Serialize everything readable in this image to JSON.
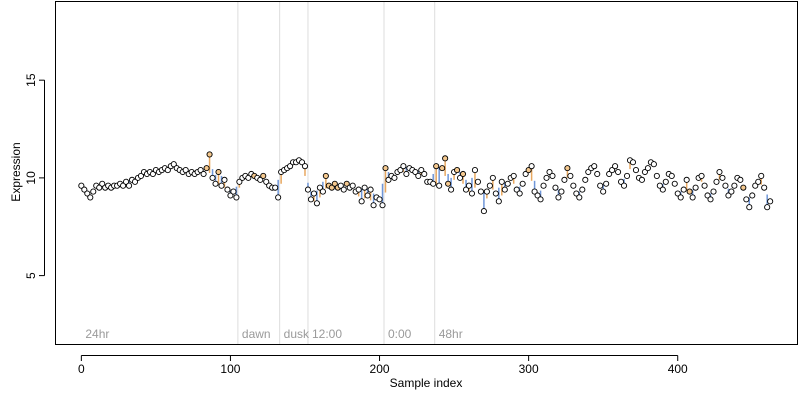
{
  "chart_data": {
    "type": "scatter",
    "title": "",
    "xlabel": "Sample index",
    "ylabel": "Expression",
    "xlim": [
      -17,
      480
    ],
    "ylim": [
      1.5,
      19
    ],
    "x_ticks": [
      0,
      100,
      200,
      300,
      400
    ],
    "y_ticks": [
      5,
      10,
      15
    ],
    "grid": false,
    "colors": {
      "point_fill_default": "#ffffff",
      "point_fill_highlight": "#f5c98f",
      "point_edge": "#000000",
      "deviation_up": "#e8a860",
      "deviation_down": "#6f96d8",
      "separator": "#dddddd",
      "segment_label": "#9a9a9a"
    },
    "segments": [
      {
        "label": "24hr",
        "start": 0
      },
      {
        "label": "dawn",
        "start": 105
      },
      {
        "label": "dusk",
        "start": 133
      },
      {
        "label": "12:00",
        "start": 152
      },
      {
        "label": "0:00",
        "start": 203
      },
      {
        "label": "48hr",
        "start": 237
      }
    ],
    "series": [
      {
        "values": [
          {
            "x": 0,
            "y": 9.6
          },
          {
            "x": 2,
            "y": 9.4
          },
          {
            "x": 4,
            "y": 9.2
          },
          {
            "x": 6,
            "y": 9.0
          },
          {
            "x": 8,
            "y": 9.3
          },
          {
            "x": 10,
            "y": 9.6
          },
          {
            "x": 12,
            "y": 9.5
          },
          {
            "x": 14,
            "y": 9.7
          },
          {
            "x": 16,
            "y": 9.5
          },
          {
            "x": 18,
            "y": 9.6
          },
          {
            "x": 20,
            "y": 9.5
          },
          {
            "x": 22,
            "y": 9.6
          },
          {
            "x": 24,
            "y": 9.6
          },
          {
            "x": 26,
            "y": 9.7
          },
          {
            "x": 28,
            "y": 9.6
          },
          {
            "x": 30,
            "y": 9.8
          },
          {
            "x": 32,
            "y": 9.6
          },
          {
            "x": 34,
            "y": 9.9
          },
          {
            "x": 36,
            "y": 9.8
          },
          {
            "x": 38,
            "y": 10.0
          },
          {
            "x": 40,
            "y": 10.1
          },
          {
            "x": 42,
            "y": 10.3
          },
          {
            "x": 44,
            "y": 10.2
          },
          {
            "x": 46,
            "y": 10.3
          },
          {
            "x": 48,
            "y": 10.2
          },
          {
            "x": 50,
            "y": 10.4
          },
          {
            "x": 52,
            "y": 10.3
          },
          {
            "x": 54,
            "y": 10.4
          },
          {
            "x": 56,
            "y": 10.5
          },
          {
            "x": 58,
            "y": 10.4
          },
          {
            "x": 60,
            "y": 10.6
          },
          {
            "x": 62,
            "y": 10.7
          },
          {
            "x": 64,
            "y": 10.5
          },
          {
            "x": 66,
            "y": 10.4
          },
          {
            "x": 68,
            "y": 10.3
          },
          {
            "x": 70,
            "y": 10.4
          },
          {
            "x": 72,
            "y": 10.2
          },
          {
            "x": 74,
            "y": 10.3
          },
          {
            "x": 76,
            "y": 10.2
          },
          {
            "x": 78,
            "y": 10.3
          },
          {
            "x": 80,
            "y": 10.4
          },
          {
            "x": 82,
            "y": 10.2
          },
          {
            "x": 84,
            "y": 10.5,
            "hl": true
          },
          {
            "x": 86,
            "y": 11.2,
            "hl": true
          },
          {
            "x": 88,
            "y": 10.0
          },
          {
            "x": 90,
            "y": 9.7
          },
          {
            "x": 92,
            "y": 10.3,
            "hl": true
          },
          {
            "x": 94,
            "y": 9.6
          },
          {
            "x": 96,
            "y": 9.9
          },
          {
            "x": 98,
            "y": 9.4
          },
          {
            "x": 100,
            "y": 9.1
          },
          {
            "x": 102,
            "y": 9.3
          },
          {
            "x": 104,
            "y": 9.0
          },
          {
            "x": 106,
            "y": 9.8
          },
          {
            "x": 108,
            "y": 10.0
          },
          {
            "x": 110,
            "y": 10.1
          },
          {
            "x": 112,
            "y": 10.0
          },
          {
            "x": 114,
            "y": 10.2
          },
          {
            "x": 116,
            "y": 10.1,
            "hl": true
          },
          {
            "x": 118,
            "y": 10.0
          },
          {
            "x": 120,
            "y": 9.9
          },
          {
            "x": 122,
            "y": 10.1,
            "hl": true
          },
          {
            "x": 124,
            "y": 9.8
          },
          {
            "x": 126,
            "y": 9.6
          },
          {
            "x": 128,
            "y": 9.5
          },
          {
            "x": 130,
            "y": 9.5
          },
          {
            "x": 132,
            "y": 9.0
          },
          {
            "x": 134,
            "y": 10.3
          },
          {
            "x": 136,
            "y": 10.4
          },
          {
            "x": 138,
            "y": 10.5
          },
          {
            "x": 140,
            "y": 10.6
          },
          {
            "x": 142,
            "y": 10.8
          },
          {
            "x": 144,
            "y": 10.8
          },
          {
            "x": 146,
            "y": 10.9
          },
          {
            "x": 148,
            "y": 10.8
          },
          {
            "x": 150,
            "y": 10.6
          },
          {
            "x": 152,
            "y": 9.4
          },
          {
            "x": 154,
            "y": 8.9
          },
          {
            "x": 156,
            "y": 9.2
          },
          {
            "x": 158,
            "y": 8.7
          },
          {
            "x": 160,
            "y": 9.5
          },
          {
            "x": 162,
            "y": 9.3
          },
          {
            "x": 164,
            "y": 10.1,
            "hl": true
          },
          {
            "x": 166,
            "y": 9.6,
            "hl": true
          },
          {
            "x": 168,
            "y": 9.5,
            "hl": true
          },
          {
            "x": 170,
            "y": 9.7,
            "hl": true
          },
          {
            "x": 172,
            "y": 9.5,
            "hl": true
          },
          {
            "x": 174,
            "y": 9.6
          },
          {
            "x": 176,
            "y": 9.4
          },
          {
            "x": 178,
            "y": 9.7,
            "hl": true
          },
          {
            "x": 180,
            "y": 9.5
          },
          {
            "x": 182,
            "y": 9.6
          },
          {
            "x": 184,
            "y": 9.3
          },
          {
            "x": 186,
            "y": 9.4
          },
          {
            "x": 188,
            "y": 8.8
          },
          {
            "x": 190,
            "y": 9.5
          },
          {
            "x": 192,
            "y": 9.1
          },
          {
            "x": 194,
            "y": 9.4
          },
          {
            "x": 196,
            "y": 8.6
          },
          {
            "x": 198,
            "y": 9.0
          },
          {
            "x": 200,
            "y": 8.9
          },
          {
            "x": 202,
            "y": 8.6
          },
          {
            "x": 204,
            "y": 10.5,
            "hl": true
          },
          {
            "x": 206,
            "y": 9.9
          },
          {
            "x": 208,
            "y": 10.1
          },
          {
            "x": 210,
            "y": 10.0
          },
          {
            "x": 212,
            "y": 10.3
          },
          {
            "x": 214,
            "y": 10.4
          },
          {
            "x": 216,
            "y": 10.6
          },
          {
            "x": 218,
            "y": 10.2
          },
          {
            "x": 220,
            "y": 10.5
          },
          {
            "x": 222,
            "y": 10.4
          },
          {
            "x": 224,
            "y": 10.3
          },
          {
            "x": 226,
            "y": 10.1
          },
          {
            "x": 228,
            "y": 10.4
          },
          {
            "x": 230,
            "y": 10.2
          },
          {
            "x": 232,
            "y": 9.8
          },
          {
            "x": 234,
            "y": 9.8
          },
          {
            "x": 236,
            "y": 9.7
          },
          {
            "x": 238,
            "y": 10.6,
            "hl": true
          },
          {
            "x": 240,
            "y": 9.6
          },
          {
            "x": 242,
            "y": 10.5,
            "hl": true
          },
          {
            "x": 244,
            "y": 11.0,
            "hl": true
          },
          {
            "x": 246,
            "y": 9.7,
            "hl": true
          },
          {
            "x": 248,
            "y": 9.4
          },
          {
            "x": 250,
            "y": 10.3
          },
          {
            "x": 252,
            "y": 10.4,
            "hl": true
          },
          {
            "x": 254,
            "y": 10.0
          },
          {
            "x": 256,
            "y": 10.2,
            "hl": true
          },
          {
            "x": 258,
            "y": 9.4
          },
          {
            "x": 260,
            "y": 9.6
          },
          {
            "x": 262,
            "y": 9.2
          },
          {
            "x": 264,
            "y": 10.4
          },
          {
            "x": 266,
            "y": 9.8
          },
          {
            "x": 268,
            "y": 9.3
          },
          {
            "x": 270,
            "y": 8.3
          },
          {
            "x": 272,
            "y": 9.3
          },
          {
            "x": 274,
            "y": 9.6
          },
          {
            "x": 276,
            "y": 10.0
          },
          {
            "x": 278,
            "y": 9.2
          },
          {
            "x": 280,
            "y": 8.8
          },
          {
            "x": 282,
            "y": 9.8
          },
          {
            "x": 284,
            "y": 9.4
          },
          {
            "x": 286,
            "y": 9.7
          },
          {
            "x": 288,
            "y": 10.0
          },
          {
            "x": 290,
            "y": 10.1
          },
          {
            "x": 292,
            "y": 9.4
          },
          {
            "x": 294,
            "y": 9.2
          },
          {
            "x": 296,
            "y": 9.7
          },
          {
            "x": 298,
            "y": 10.2
          },
          {
            "x": 300,
            "y": 10.4,
            "hl": true
          },
          {
            "x": 302,
            "y": 10.6
          },
          {
            "x": 304,
            "y": 9.3
          },
          {
            "x": 306,
            "y": 9.1
          },
          {
            "x": 308,
            "y": 8.9
          },
          {
            "x": 310,
            "y": 9.6
          },
          {
            "x": 312,
            "y": 10.0
          },
          {
            "x": 314,
            "y": 10.3
          },
          {
            "x": 316,
            "y": 10.1
          },
          {
            "x": 318,
            "y": 9.5
          },
          {
            "x": 320,
            "y": 9.0
          },
          {
            "x": 322,
            "y": 9.3
          },
          {
            "x": 324,
            "y": 9.9
          },
          {
            "x": 326,
            "y": 10.5,
            "hl": true
          },
          {
            "x": 328,
            "y": 10.1
          },
          {
            "x": 330,
            "y": 9.6
          },
          {
            "x": 332,
            "y": 9.2
          },
          {
            "x": 334,
            "y": 9.0
          },
          {
            "x": 336,
            "y": 9.4
          },
          {
            "x": 338,
            "y": 9.9
          },
          {
            "x": 340,
            "y": 10.3
          },
          {
            "x": 342,
            "y": 10.5
          },
          {
            "x": 344,
            "y": 10.6
          },
          {
            "x": 346,
            "y": 10.2
          },
          {
            "x": 348,
            "y": 9.6
          },
          {
            "x": 350,
            "y": 9.3
          },
          {
            "x": 352,
            "y": 9.7
          },
          {
            "x": 354,
            "y": 10.2
          },
          {
            "x": 356,
            "y": 10.4
          },
          {
            "x": 358,
            "y": 10.6
          },
          {
            "x": 360,
            "y": 10.3
          },
          {
            "x": 362,
            "y": 9.8
          },
          {
            "x": 364,
            "y": 9.6
          },
          {
            "x": 366,
            "y": 10.1
          },
          {
            "x": 368,
            "y": 10.9
          },
          {
            "x": 370,
            "y": 10.8
          },
          {
            "x": 372,
            "y": 10.4
          },
          {
            "x": 374,
            "y": 10.0
          },
          {
            "x": 376,
            "y": 9.9
          },
          {
            "x": 378,
            "y": 10.3
          },
          {
            "x": 380,
            "y": 10.5
          },
          {
            "x": 382,
            "y": 10.8
          },
          {
            "x": 384,
            "y": 10.7
          },
          {
            "x": 386,
            "y": 10.1
          },
          {
            "x": 388,
            "y": 9.6
          },
          {
            "x": 390,
            "y": 9.4
          },
          {
            "x": 392,
            "y": 9.8
          },
          {
            "x": 394,
            "y": 10.2
          },
          {
            "x": 396,
            "y": 10.1
          },
          {
            "x": 398,
            "y": 9.7
          },
          {
            "x": 400,
            "y": 9.2
          },
          {
            "x": 402,
            "y": 9.0
          },
          {
            "x": 404,
            "y": 9.4
          },
          {
            "x": 406,
            "y": 9.9
          },
          {
            "x": 408,
            "y": 9.3,
            "hl": true
          },
          {
            "x": 410,
            "y": 9.0
          },
          {
            "x": 412,
            "y": 9.5
          },
          {
            "x": 414,
            "y": 10.0
          },
          {
            "x": 416,
            "y": 10.1
          },
          {
            "x": 418,
            "y": 9.6
          },
          {
            "x": 420,
            "y": 9.1
          },
          {
            "x": 422,
            "y": 8.9
          },
          {
            "x": 424,
            "y": 9.3
          },
          {
            "x": 426,
            "y": 9.8
          },
          {
            "x": 428,
            "y": 10.3
          },
          {
            "x": 430,
            "y": 10.0
          },
          {
            "x": 432,
            "y": 9.6
          },
          {
            "x": 434,
            "y": 9.1
          },
          {
            "x": 436,
            "y": 9.3
          },
          {
            "x": 438,
            "y": 9.6
          },
          {
            "x": 440,
            "y": 10.0
          },
          {
            "x": 442,
            "y": 9.9
          },
          {
            "x": 444,
            "y": 9.5,
            "hl": true
          },
          {
            "x": 446,
            "y": 8.9
          },
          {
            "x": 448,
            "y": 8.5
          },
          {
            "x": 450,
            "y": 9.1
          },
          {
            "x": 452,
            "y": 9.6
          },
          {
            "x": 454,
            "y": 9.8
          },
          {
            "x": 456,
            "y": 10.1
          },
          {
            "x": 458,
            "y": 9.5
          },
          {
            "x": 460,
            "y": 8.5
          },
          {
            "x": 462,
            "y": 8.8
          }
        ]
      }
    ]
  }
}
